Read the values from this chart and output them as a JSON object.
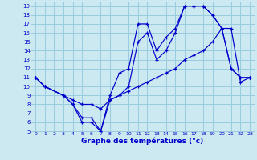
{
  "title": "Graphe des températures (°c)",
  "background_color": "#cce8f0",
  "grid_color": "#99cce0",
  "line_color": "#0000cc",
  "xlim": [
    -0.5,
    23.5
  ],
  "ylim": [
    5,
    19.5
  ],
  "xticks": [
    0,
    1,
    2,
    3,
    4,
    5,
    6,
    7,
    8,
    9,
    10,
    11,
    12,
    13,
    14,
    15,
    16,
    17,
    18,
    19,
    20,
    21,
    22,
    23
  ],
  "yticks": [
    5,
    6,
    7,
    8,
    9,
    10,
    11,
    12,
    13,
    14,
    15,
    16,
    17,
    18,
    19
  ],
  "line1_x": [
    0,
    1,
    3,
    4,
    5,
    6,
    7,
    8,
    9,
    10,
    11,
    12,
    13,
    14,
    15,
    16,
    17,
    18,
    19,
    20,
    21,
    22,
    23
  ],
  "line1_y": [
    11,
    10,
    9,
    8,
    6,
    6,
    5,
    9,
    11.5,
    12,
    17,
    17,
    14,
    15.5,
    16.5,
    19,
    19,
    19,
    18,
    16.5,
    12,
    11,
    11
  ],
  "line2_x": [
    0,
    1,
    3,
    4,
    5,
    6,
    7,
    8,
    9,
    10,
    11,
    12,
    13,
    14,
    15,
    16,
    17,
    18,
    19,
    20,
    21,
    22,
    23
  ],
  "line2_y": [
    11,
    10,
    9,
    8,
    6.5,
    6.5,
    5,
    8.5,
    9,
    10,
    15,
    16,
    13,
    14,
    16,
    19,
    19,
    19,
    18,
    16.5,
    12,
    11,
    11
  ],
  "line3_x": [
    0,
    1,
    3,
    4,
    5,
    6,
    7,
    8,
    9,
    9.5,
    10.5,
    11.5,
    12.5,
    13.5,
    14.5,
    15.5,
    16.5,
    17.5,
    18.5,
    19.5,
    20.5,
    21.5,
    22.5
  ],
  "line3_y": [
    11,
    10,
    9,
    8.5,
    8,
    8,
    7.5,
    8.5,
    9,
    9.5,
    10,
    10.5,
    11,
    11.5,
    12,
    13,
    13.5,
    14,
    15,
    16.5,
    16.5,
    10.5,
    11
  ]
}
